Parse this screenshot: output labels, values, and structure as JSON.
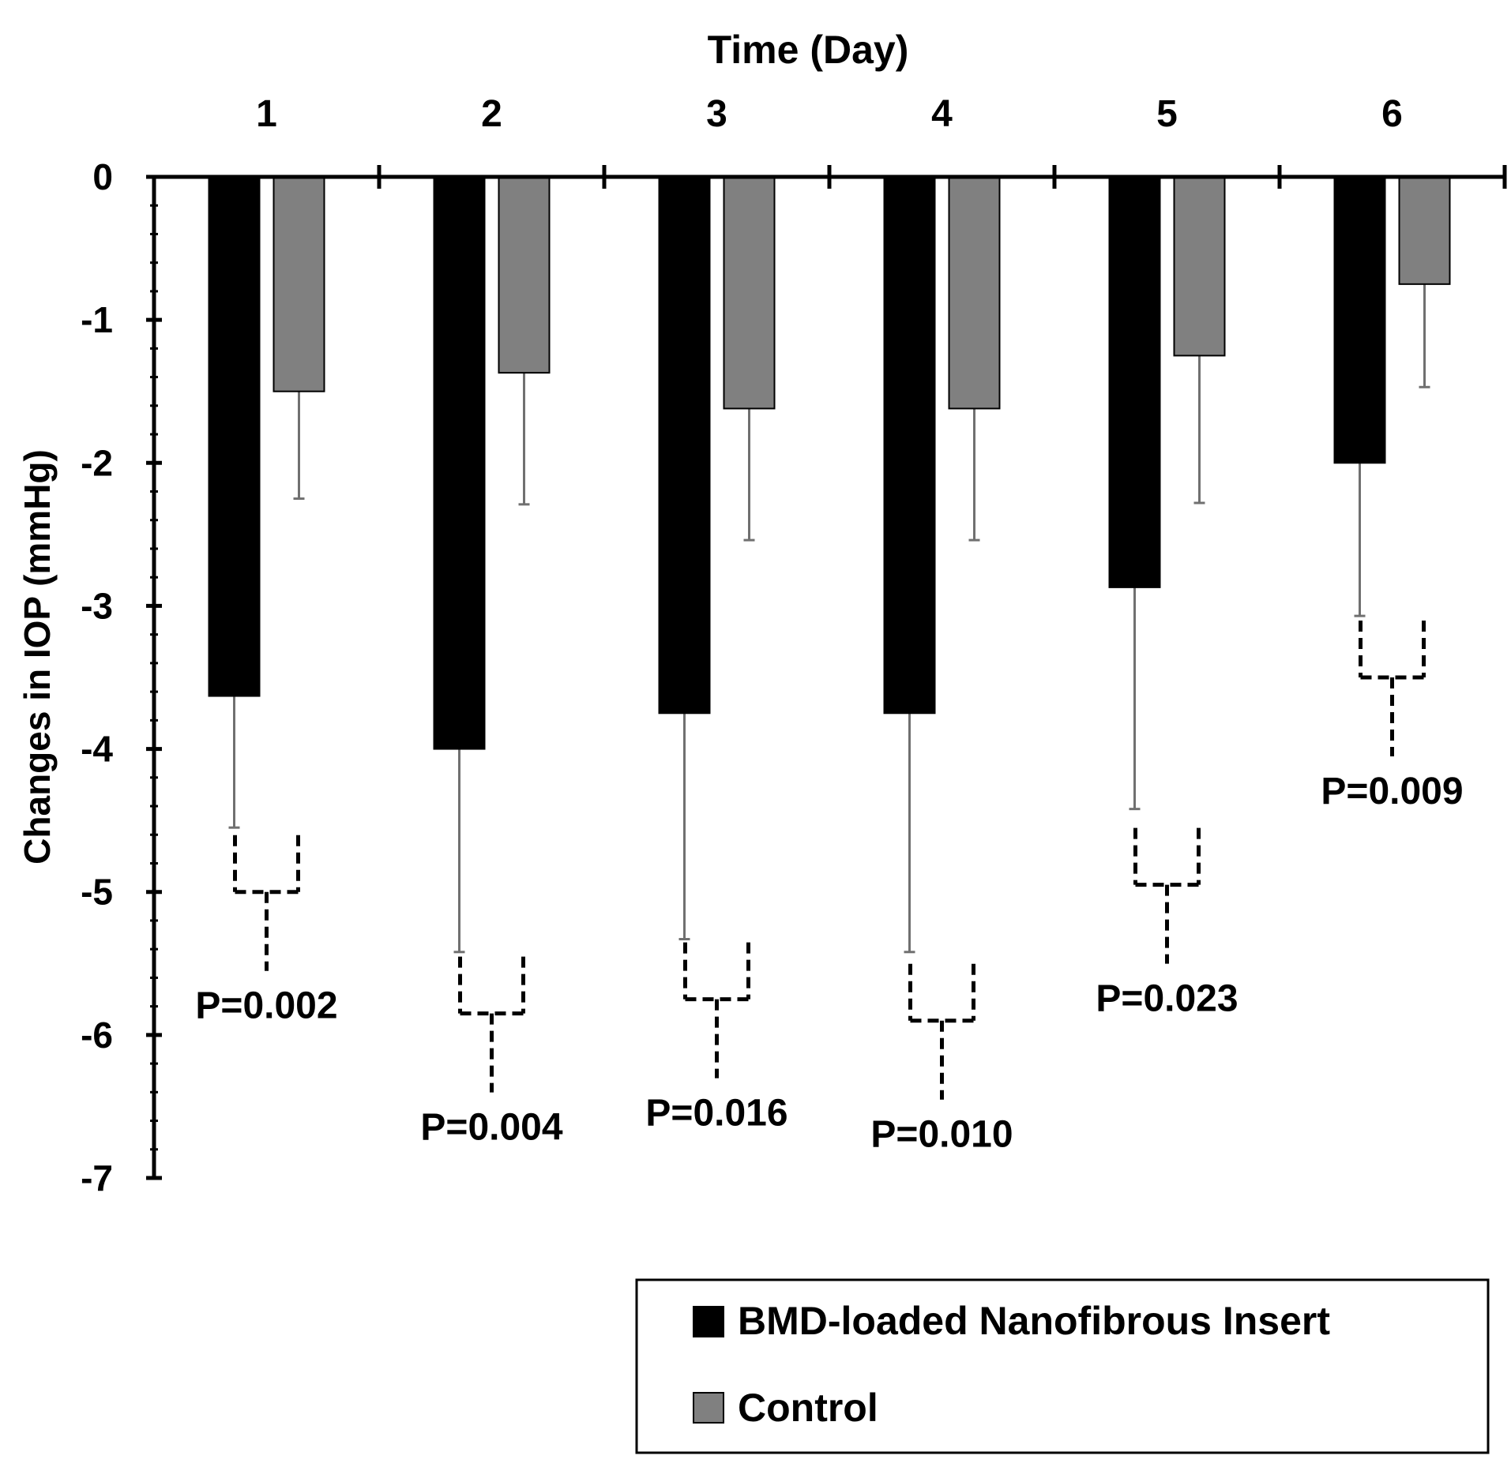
{
  "chart_data": {
    "type": "bar",
    "title": "",
    "xlabel": "Time (Day)",
    "ylabel": "Changes in IOP (mmHg)",
    "x_axis_position": "top",
    "ylim": [
      -7,
      0
    ],
    "yticks": [
      0,
      -1,
      -2,
      -3,
      -4,
      -5,
      -6,
      -7
    ],
    "categories": [
      "1",
      "2",
      "3",
      "4",
      "5",
      "6"
    ],
    "series": [
      {
        "name": "BMD-loaded Nanofibrous Insert",
        "color": "#000000",
        "values": [
          -3.63,
          -4.0,
          -3.75,
          -3.75,
          -2.87,
          -2.0
        ],
        "errors": [
          0.92,
          1.42,
          1.58,
          1.67,
          1.55,
          1.07
        ]
      },
      {
        "name": "Control",
        "color": "#808080",
        "values": [
          -1.5,
          -1.37,
          -1.62,
          -1.62,
          -1.25,
          -0.75
        ],
        "errors": [
          0.75,
          0.92,
          0.92,
          0.92,
          1.03,
          0.72
        ]
      }
    ],
    "p_values": [
      "P=0.002",
      "P=0.004",
      "P=0.016",
      "P=0.010",
      "P=0.023",
      "P=0.009"
    ],
    "p_value_positions_data_units": [
      -5.0,
      -5.85,
      -5.75,
      -5.9,
      -4.95,
      -3.5
    ],
    "grid": false,
    "legend": {
      "position": "bottom-right",
      "entries": [
        "BMD-loaded Nanofibrous Insert",
        "Control"
      ]
    }
  }
}
